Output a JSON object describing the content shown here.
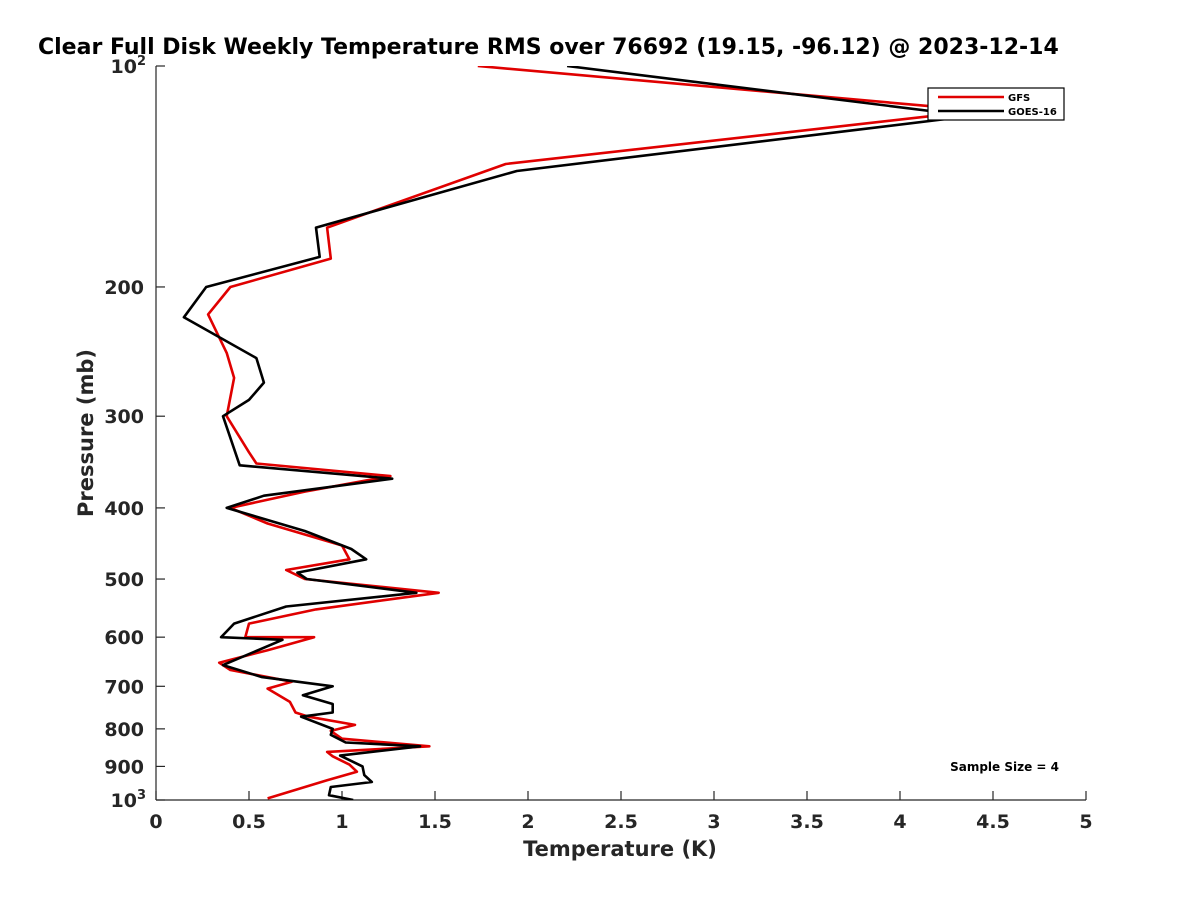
{
  "chart_data": {
    "type": "line",
    "title": "Clear Full Disk Weekly Temperature RMS over 76692 (19.15, -96.12) @ 2023-12-14",
    "xlabel": "Temperature (K)",
    "ylabel": "Pressure (mb)",
    "xlim": [
      0,
      5
    ],
    "ylim": [
      100,
      1000
    ],
    "y_scale": "log",
    "y_reversed": true,
    "grid": false,
    "x_ticks": [
      "0",
      "0.5",
      "1",
      "1.5",
      "2",
      "2.5",
      "3",
      "3.5",
      "4",
      "4.5",
      "5"
    ],
    "y_ticks": [
      {
        "value": 100,
        "base": "10",
        "exp": "2"
      },
      {
        "value": 200,
        "label": "200"
      },
      {
        "value": 300,
        "label": "300"
      },
      {
        "value": 400,
        "label": "400"
      },
      {
        "value": 500,
        "label": "500"
      },
      {
        "value": 600,
        "label": "600"
      },
      {
        "value": 700,
        "label": "700"
      },
      {
        "value": 800,
        "label": "800"
      },
      {
        "value": 900,
        "label": "900"
      },
      {
        "value": 1000,
        "base": "10",
        "exp": "3"
      }
    ],
    "legend_position": "top-right",
    "annotation": "Sample Size = 4",
    "series": [
      {
        "name": "GFS",
        "color": "#e00000",
        "points": [
          [
            1.73,
            100
          ],
          [
            4.43,
            115
          ],
          [
            1.88,
            136
          ],
          [
            0.92,
            166
          ],
          [
            0.94,
            183
          ],
          [
            0.4,
            200
          ],
          [
            0.28,
            218
          ],
          [
            0.38,
            246
          ],
          [
            0.42,
            266
          ],
          [
            0.38,
            300
          ],
          [
            0.5,
            336
          ],
          [
            0.54,
            348
          ],
          [
            1.26,
            362
          ],
          [
            0.8,
            380
          ],
          [
            0.4,
            400
          ],
          [
            0.6,
            420
          ],
          [
            1.0,
            450
          ],
          [
            1.04,
            470
          ],
          [
            0.7,
            486
          ],
          [
            0.8,
            500
          ],
          [
            1.52,
            522
          ],
          [
            0.86,
            550
          ],
          [
            0.5,
            575
          ],
          [
            0.48,
            600
          ],
          [
            0.85,
            600
          ],
          [
            0.6,
            625
          ],
          [
            0.34,
            650
          ],
          [
            0.4,
            665
          ],
          [
            0.73,
            690
          ],
          [
            0.6,
            705
          ],
          [
            0.72,
            735
          ],
          [
            0.75,
            760
          ],
          [
            0.82,
            770
          ],
          [
            1.07,
            790
          ],
          [
            0.94,
            805
          ],
          [
            1.0,
            825
          ],
          [
            1.47,
            845
          ],
          [
            0.92,
            860
          ],
          [
            0.95,
            872
          ],
          [
            1.04,
            895
          ],
          [
            1.08,
            915
          ],
          [
            0.92,
            940
          ],
          [
            0.6,
            995
          ]
        ]
      },
      {
        "name": "GOES-16",
        "color": "#000000",
        "points": [
          [
            2.21,
            100
          ],
          [
            4.38,
            117
          ],
          [
            1.94,
            139
          ],
          [
            0.86,
            166
          ],
          [
            0.88,
            182
          ],
          [
            0.27,
            200
          ],
          [
            0.15,
            220
          ],
          [
            0.54,
            250
          ],
          [
            0.58,
            270
          ],
          [
            0.5,
            285
          ],
          [
            0.36,
            300
          ],
          [
            0.45,
            350
          ],
          [
            1.27,
            365
          ],
          [
            0.58,
            385
          ],
          [
            0.38,
            400
          ],
          [
            0.8,
            430
          ],
          [
            1.05,
            455
          ],
          [
            1.13,
            470
          ],
          [
            0.76,
            490
          ],
          [
            0.81,
            500
          ],
          [
            1.4,
            522
          ],
          [
            0.7,
            545
          ],
          [
            0.42,
            575
          ],
          [
            0.35,
            600
          ],
          [
            0.68,
            605
          ],
          [
            0.36,
            655
          ],
          [
            0.57,
            680
          ],
          [
            0.95,
            700
          ],
          [
            0.79,
            720
          ],
          [
            0.95,
            740
          ],
          [
            0.95,
            760
          ],
          [
            0.78,
            770
          ],
          [
            0.95,
            800
          ],
          [
            0.94,
            815
          ],
          [
            1.02,
            835
          ],
          [
            1.42,
            845
          ],
          [
            0.99,
            870
          ],
          [
            1.11,
            900
          ],
          [
            1.12,
            925
          ],
          [
            1.16,
            945
          ],
          [
            0.94,
            960
          ],
          [
            0.93,
            985
          ],
          [
            1.06,
            1000
          ]
        ]
      }
    ]
  }
}
